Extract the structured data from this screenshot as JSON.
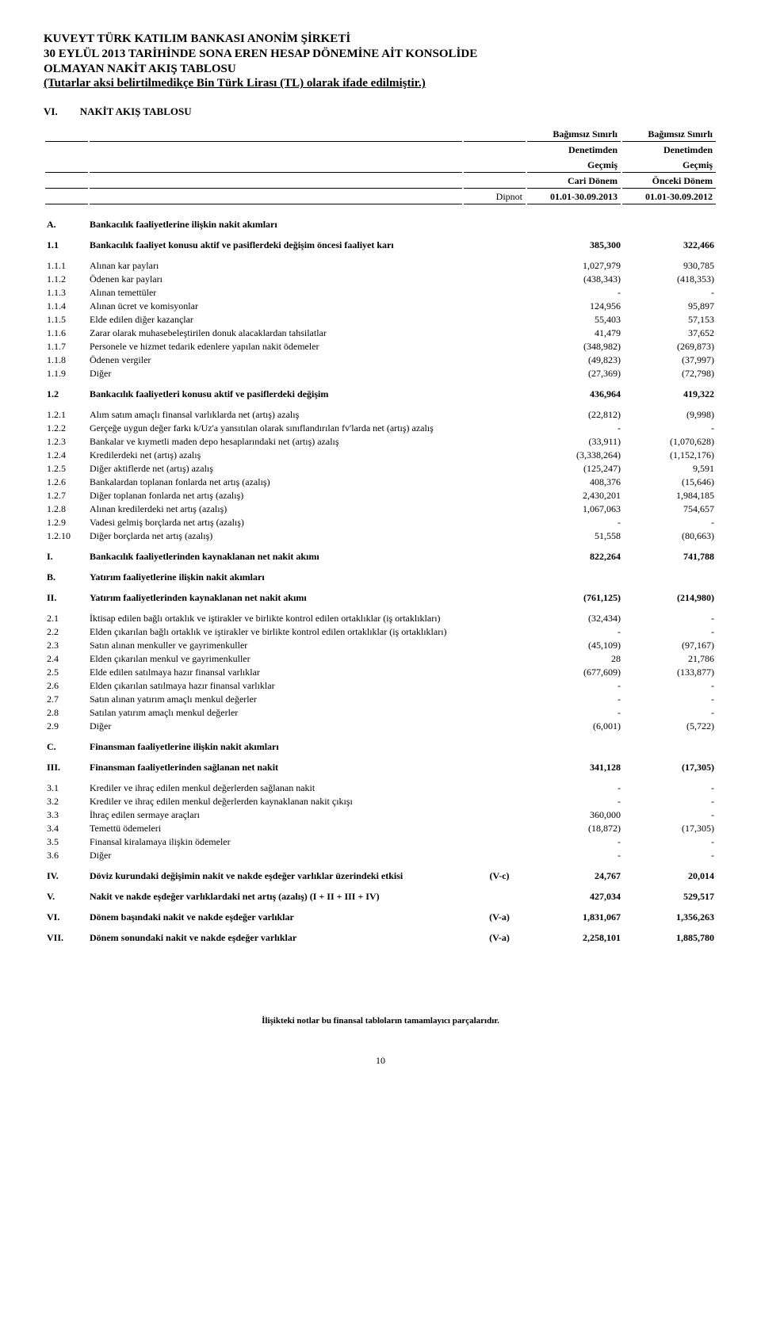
{
  "header": {
    "line1": "KUVEYT TÜRK KATILIM BANKASI ANONİM ŞİRKETİ",
    "line2": "30 EYLÜL 2013 TARİHİNDE SONA EREN HESAP DÖNEMİNE AİT KONSOLİDE",
    "line3": "OLMAYAN NAKİT AKIŞ TABLOSU",
    "line4": " (Tutarlar aksi belirtilmedikçe Bin Türk Lirası (TL) olarak ifade edilmiştir.)"
  },
  "section": {
    "idx": "VI.",
    "title": "NAKİT AKIŞ TABLOSU"
  },
  "columns": {
    "note": "Dipnot",
    "cur1": "Bağımsız Sınırlı",
    "cur2": "Denetimden",
    "cur3": "Geçmiş",
    "cur4": "Cari Dönem",
    "cur5": "01.01-30.09.2013",
    "prev1": "Bağımsız Sınırlı",
    "prev2": "Denetimden",
    "prev3": "Geçmiş",
    "prev4": "Önceki Dönem",
    "prev5": "01.01-30.09.2012"
  },
  "rows": [
    {
      "idx": "A.",
      "label": "Bankacılık faaliyetlerine ilişkin nakit akımları",
      "note": "",
      "cur": "",
      "prev": "",
      "bold": true,
      "gap": true
    },
    {
      "idx": "1.1",
      "label": "Bankacılık faaliyet konusu aktif ve pasiflerdeki değişim öncesi faaliyet karı",
      "note": "",
      "cur": "385,300",
      "prev": "322,466",
      "bold": true,
      "gap": true
    },
    {
      "idx": "1.1.1",
      "label": "Alınan kar payları",
      "note": "",
      "cur": "1,027,979",
      "prev": "930,785",
      "gap": true
    },
    {
      "idx": "1.1.2",
      "label": "Ödenen kar payları",
      "note": "",
      "cur": "(438,343)",
      "prev": "(418,353)"
    },
    {
      "idx": "1.1.3",
      "label": "Alınan temettüler",
      "note": "",
      "cur": "-",
      "prev": "-"
    },
    {
      "idx": "1.1.4",
      "label": "Alınan ücret ve komisyonlar",
      "note": "",
      "cur": "124,956",
      "prev": "95,897"
    },
    {
      "idx": "1.1.5",
      "label": "Elde edilen diğer kazançlar",
      "note": "",
      "cur": "55,403",
      "prev": "57,153"
    },
    {
      "idx": "1.1.6",
      "label": "Zarar olarak muhasebeleştirilen donuk alacaklardan tahsilatlar",
      "note": "",
      "cur": "41,479",
      "prev": "37,652"
    },
    {
      "idx": "1.1.7",
      "label": "Personele ve hizmet tedarik edenlere yapılan nakit ödemeler",
      "note": "",
      "cur": "(348,982)",
      "prev": "(269,873)"
    },
    {
      "idx": "1.1.8",
      "label": "Ödenen vergiler",
      "note": "",
      "cur": "(49,823)",
      "prev": "(37,997)"
    },
    {
      "idx": "1.1.9",
      "label": "Diğer",
      "note": "",
      "cur": "(27,369)",
      "prev": "(72,798)"
    },
    {
      "idx": "1.2",
      "label": "Bankacılık faaliyetleri konusu aktif ve pasiflerdeki değişim",
      "note": "",
      "cur": "436,964",
      "prev": "419,322",
      "bold": true,
      "gap": true
    },
    {
      "idx": "1.2.1",
      "label": "Alım satım amaçlı finansal varlıklarda net (artış) azalış",
      "note": "",
      "cur": "(22,812)",
      "prev": "(9,998)",
      "gap": true
    },
    {
      "idx": "1.2.2",
      "label": "Gerçeğe uygun değer farkı k/Uz'a yansıtılan olarak sınıflandırılan fv'larda net (artış) azalış",
      "note": "",
      "cur": "-",
      "prev": "-"
    },
    {
      "idx": "1.2.3",
      "label": "Bankalar ve kıymetli maden depo hesaplarındaki net (artış) azalış",
      "note": "",
      "cur": "(33,911)",
      "prev": "(1,070,628)"
    },
    {
      "idx": "1.2.4",
      "label": "Kredilerdeki net (artış) azalış",
      "note": "",
      "cur": "(3,338,264)",
      "prev": "(1,152,176)"
    },
    {
      "idx": "1.2.5",
      "label": "Diğer aktiflerde net (artış) azalış",
      "note": "",
      "cur": "(125,247)",
      "prev": "9,591"
    },
    {
      "idx": "1.2.6",
      "label": "Bankalardan toplanan fonlarda net artış (azalış)",
      "note": "",
      "cur": "408,376",
      "prev": "(15,646)"
    },
    {
      "idx": "1.2.7",
      "label": "Diğer toplanan fonlarda net artış (azalış)",
      "note": "",
      "cur": "2,430,201",
      "prev": "1,984,185"
    },
    {
      "idx": "1.2.8",
      "label": "Alınan kredilerdeki net artış (azalış)",
      "note": "",
      "cur": "1,067,063",
      "prev": "754,657"
    },
    {
      "idx": "1.2.9",
      "label": "Vadesi gelmiş borçlarda net artış (azalış)",
      "note": "",
      "cur": "-",
      "prev": "-"
    },
    {
      "idx": "1.2.10",
      "label": "Diğer borçlarda net artış (azalış)",
      "note": "",
      "cur": "51,558",
      "prev": "(80,663)"
    },
    {
      "idx": "I.",
      "label": "Bankacılık faaliyetlerinden kaynaklanan net nakit akımı",
      "note": "",
      "cur": "822,264",
      "prev": "741,788",
      "bold": true,
      "gap": true
    },
    {
      "idx": "B.",
      "label": "Yatırım faaliyetlerine ilişkin nakit akımları",
      "note": "",
      "cur": "",
      "prev": "",
      "bold": true,
      "gap": true
    },
    {
      "idx": "II.",
      "label": "Yatırım faaliyetlerinden kaynaklanan net nakit akımı",
      "note": "",
      "cur": "(761,125)",
      "prev": "(214,980)",
      "bold": true,
      "gap": true
    },
    {
      "idx": "2.1",
      "label": "İktisap edilen bağlı ortaklık ve iştirakler ve birlikte kontrol edilen ortaklıklar (iş ortaklıkları)",
      "note": "",
      "cur": "(32,434)",
      "prev": "-",
      "gap": true
    },
    {
      "idx": "2.2",
      "label": "Elden çıkarılan bağlı ortaklık ve iştirakler ve birlikte kontrol edilen ortaklıklar (iş ortaklıkları)",
      "note": "",
      "cur": "-",
      "prev": "-"
    },
    {
      "idx": "2.3",
      "label": "Satın alınan menkuller ve gayrimenkuller",
      "note": "",
      "cur": "(45,109)",
      "prev": "(97,167)"
    },
    {
      "idx": "2.4",
      "label": "Elden çıkarılan menkul ve gayrimenkuller",
      "note": "",
      "cur": "28",
      "prev": "21,786"
    },
    {
      "idx": "2.5",
      "label": "Elde edilen satılmaya hazır  finansal varlıklar",
      "note": "",
      "cur": "(677,609)",
      "prev": "(133,877)"
    },
    {
      "idx": "2.6",
      "label": "Elden çıkarılan satılmaya hazır finansal varlıklar",
      "note": "",
      "cur": "-",
      "prev": "-"
    },
    {
      "idx": "2.7",
      "label": "Satın alınan yatırım amaçlı menkul değerler",
      "note": "",
      "cur": "-",
      "prev": "-"
    },
    {
      "idx": "2.8",
      "label": "Satılan yatırım amaçlı menkul değerler",
      "note": "",
      "cur": "-",
      "prev": "-"
    },
    {
      "idx": "2.9",
      "label": "Diğer",
      "note": "",
      "cur": "(6,001)",
      "prev": "(5,722)"
    },
    {
      "idx": "C.",
      "label": "Finansman faaliyetlerine ilişkin nakit akımları",
      "note": "",
      "cur": "",
      "prev": "",
      "bold": true,
      "gap": true
    },
    {
      "idx": "III.",
      "label": "Finansman faaliyetlerinden sağlanan net nakit",
      "note": "",
      "cur": "341,128",
      "prev": "(17,305)",
      "bold": true,
      "gap": true
    },
    {
      "idx": "3.1",
      "label": "Krediler ve ihraç edilen menkul değerlerden sağlanan nakit",
      "note": "",
      "cur": "-",
      "prev": "-",
      "gap": true
    },
    {
      "idx": "3.2",
      "label": "Krediler ve ihraç edilen menkul değerlerden kaynaklanan nakit çıkışı",
      "note": "",
      "cur": "-",
      "prev": "-"
    },
    {
      "idx": "3.3",
      "label": "İhraç edilen sermaye araçları",
      "note": "",
      "cur": "360,000",
      "prev": "-"
    },
    {
      "idx": "3.4",
      "label": "Temettü ödemeleri",
      "note": "",
      "cur": "(18,872)",
      "prev": "(17,305)"
    },
    {
      "idx": "3.5",
      "label": "Finansal kiralamaya ilişkin ödemeler",
      "note": "",
      "cur": "-",
      "prev": "-"
    },
    {
      "idx": "3.6",
      "label": "Diğer",
      "note": "",
      "cur": "-",
      "prev": "-"
    },
    {
      "idx": "IV.",
      "label": "Döviz kurundaki değişimin nakit ve nakde eşdeğer varlıklar üzerindeki etkisi",
      "note": "(V-c)",
      "cur": "24,767",
      "prev": "20,014",
      "bold": true,
      "gap": true
    },
    {
      "idx": "V.",
      "label": "Nakit ve nakde eşdeğer varlıklardaki net artış (azalış) (I + II + III + IV)",
      "note": "",
      "cur": "427,034",
      "prev": "529,517",
      "bold": true,
      "gap": true
    },
    {
      "idx": "VI.",
      "label": "Dönem başındaki nakit ve nakde eşdeğer varlıklar",
      "note": "(V-a)",
      "cur": "1,831,067",
      "prev": "1,356,263",
      "bold": true,
      "gap": true
    },
    {
      "idx": "VII.",
      "label": "Dönem sonundaki nakit ve nakde eşdeğer varlıklar",
      "note": "(V-a)",
      "cur": "2,258,101",
      "prev": "1,885,780",
      "bold": true,
      "gap": true
    }
  ],
  "footer": "İlişikteki notlar bu finansal tabloların tamamlayıcı parçalarıdır.",
  "pageNumber": "10"
}
